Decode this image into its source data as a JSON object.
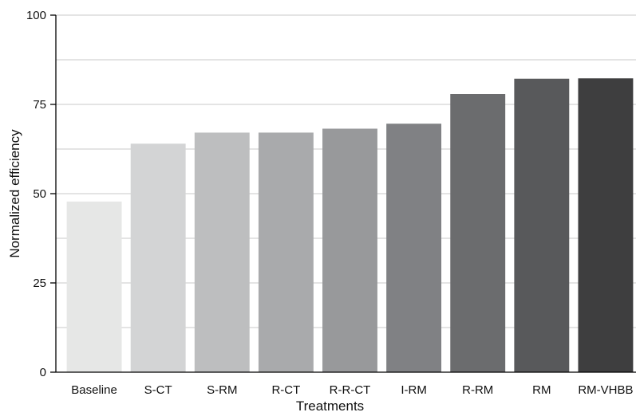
{
  "chart_data": {
    "type": "bar",
    "title": "",
    "xlabel": "Treatments",
    "ylabel": "Normalized efficiency",
    "ylim": [
      0,
      100
    ],
    "yticks": [
      0,
      25,
      50,
      75,
      100
    ],
    "grid": true,
    "categories": [
      "Baseline",
      "S-CT",
      "S-RM",
      "R-CT",
      "R-R-CT",
      "I-RM",
      "R-RM",
      "RM",
      "RM-VHBB"
    ],
    "values": [
      47.8,
      64,
      67.1,
      67.1,
      68.2,
      69.6,
      77.9,
      82.2,
      82.3
    ],
    "bar_colors": [
      "#e6e7e6",
      "#d3d4d5",
      "#bdbebf",
      "#a9aaac",
      "#98999b",
      "#808184",
      "#6b6c6e",
      "#58595b",
      "#3e3e3f"
    ]
  }
}
